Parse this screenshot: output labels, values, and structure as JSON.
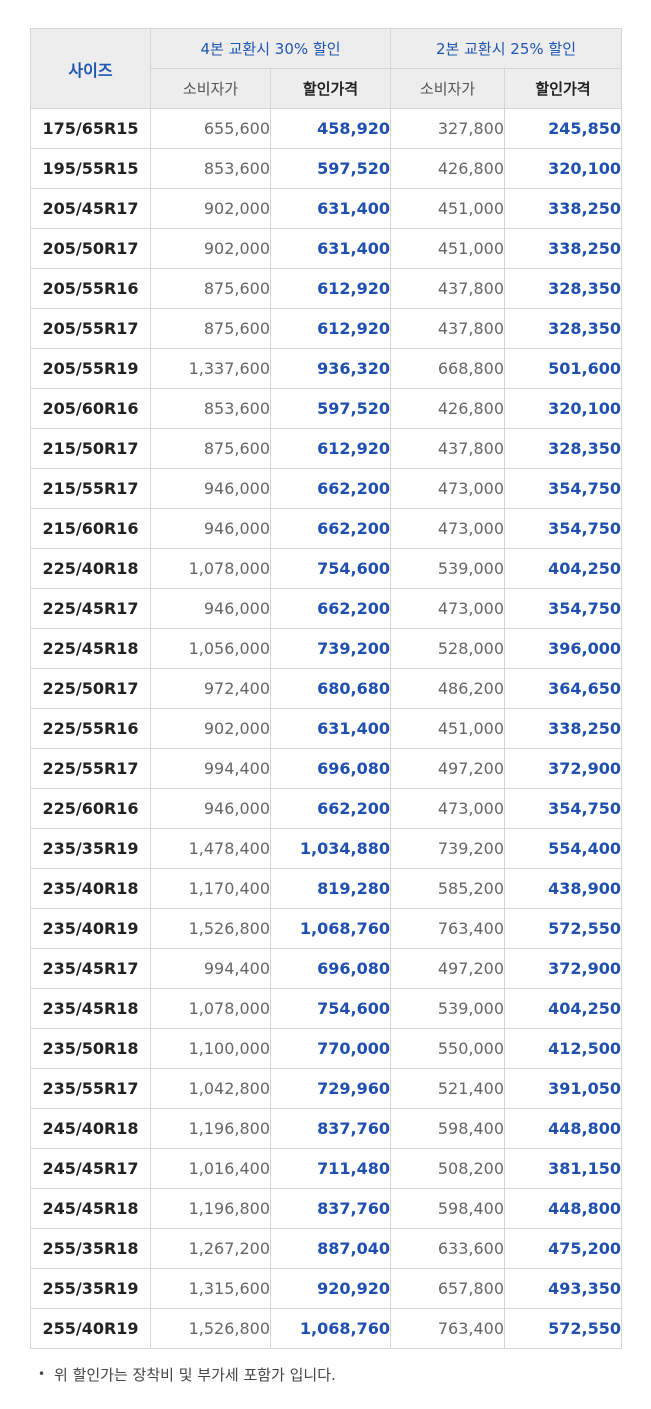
{
  "header": {
    "size": "사이즈",
    "group_four": "4본 교환시 30% 할인",
    "group_two": "2본 교환시 25% 할인",
    "consumer_price": "소비자가",
    "discount_price": "할인가격"
  },
  "rows": [
    [
      "175/65R15",
      "655,600",
      "458,920",
      "327,800",
      "245,850"
    ],
    [
      "195/55R15",
      "853,600",
      "597,520",
      "426,800",
      "320,100"
    ],
    [
      "205/45R17",
      "902,000",
      "631,400",
      "451,000",
      "338,250"
    ],
    [
      "205/50R17",
      "902,000",
      "631,400",
      "451,000",
      "338,250"
    ],
    [
      "205/55R16",
      "875,600",
      "612,920",
      "437,800",
      "328,350"
    ],
    [
      "205/55R17",
      "875,600",
      "612,920",
      "437,800",
      "328,350"
    ],
    [
      "205/55R19",
      "1,337,600",
      "936,320",
      "668,800",
      "501,600"
    ],
    [
      "205/60R16",
      "853,600",
      "597,520",
      "426,800",
      "320,100"
    ],
    [
      "215/50R17",
      "875,600",
      "612,920",
      "437,800",
      "328,350"
    ],
    [
      "215/55R17",
      "946,000",
      "662,200",
      "473,000",
      "354,750"
    ],
    [
      "215/60R16",
      "946,000",
      "662,200",
      "473,000",
      "354,750"
    ],
    [
      "225/40R18",
      "1,078,000",
      "754,600",
      "539,000",
      "404,250"
    ],
    [
      "225/45R17",
      "946,000",
      "662,200",
      "473,000",
      "354,750"
    ],
    [
      "225/45R18",
      "1,056,000",
      "739,200",
      "528,000",
      "396,000"
    ],
    [
      "225/50R17",
      "972,400",
      "680,680",
      "486,200",
      "364,650"
    ],
    [
      "225/55R16",
      "902,000",
      "631,400",
      "451,000",
      "338,250"
    ],
    [
      "225/55R17",
      "994,400",
      "696,080",
      "497,200",
      "372,900"
    ],
    [
      "225/60R16",
      "946,000",
      "662,200",
      "473,000",
      "354,750"
    ],
    [
      "235/35R19",
      "1,478,400",
      "1,034,880",
      "739,200",
      "554,400"
    ],
    [
      "235/40R18",
      "1,170,400",
      "819,280",
      "585,200",
      "438,900"
    ],
    [
      "235/40R19",
      "1,526,800",
      "1,068,760",
      "763,400",
      "572,550"
    ],
    [
      "235/45R17",
      "994,400",
      "696,080",
      "497,200",
      "372,900"
    ],
    [
      "235/45R18",
      "1,078,000",
      "754,600",
      "539,000",
      "404,250"
    ],
    [
      "235/50R18",
      "1,100,000",
      "770,000",
      "550,000",
      "412,500"
    ],
    [
      "235/55R17",
      "1,042,800",
      "729,960",
      "521,400",
      "391,050"
    ],
    [
      "245/40R18",
      "1,196,800",
      "837,760",
      "598,400",
      "448,800"
    ],
    [
      "245/45R17",
      "1,016,400",
      "711,480",
      "508,200",
      "381,150"
    ],
    [
      "245/45R18",
      "1,196,800",
      "837,760",
      "598,400",
      "448,800"
    ],
    [
      "255/35R18",
      "1,267,200",
      "887,040",
      "633,600",
      "475,200"
    ],
    [
      "255/35R19",
      "1,315,600",
      "920,920",
      "657,800",
      "493,350"
    ],
    [
      "255/40R19",
      "1,526,800",
      "1,068,760",
      "763,400",
      "572,550"
    ]
  ],
  "note": {
    "bullet": "•",
    "text": "위 할인가는 장착비 및 부가세 포함가 입니다."
  },
  "colors": {
    "accent_blue": "#1f4fb0",
    "header_bg": "#ededed",
    "border": "#d6d6d6"
  }
}
